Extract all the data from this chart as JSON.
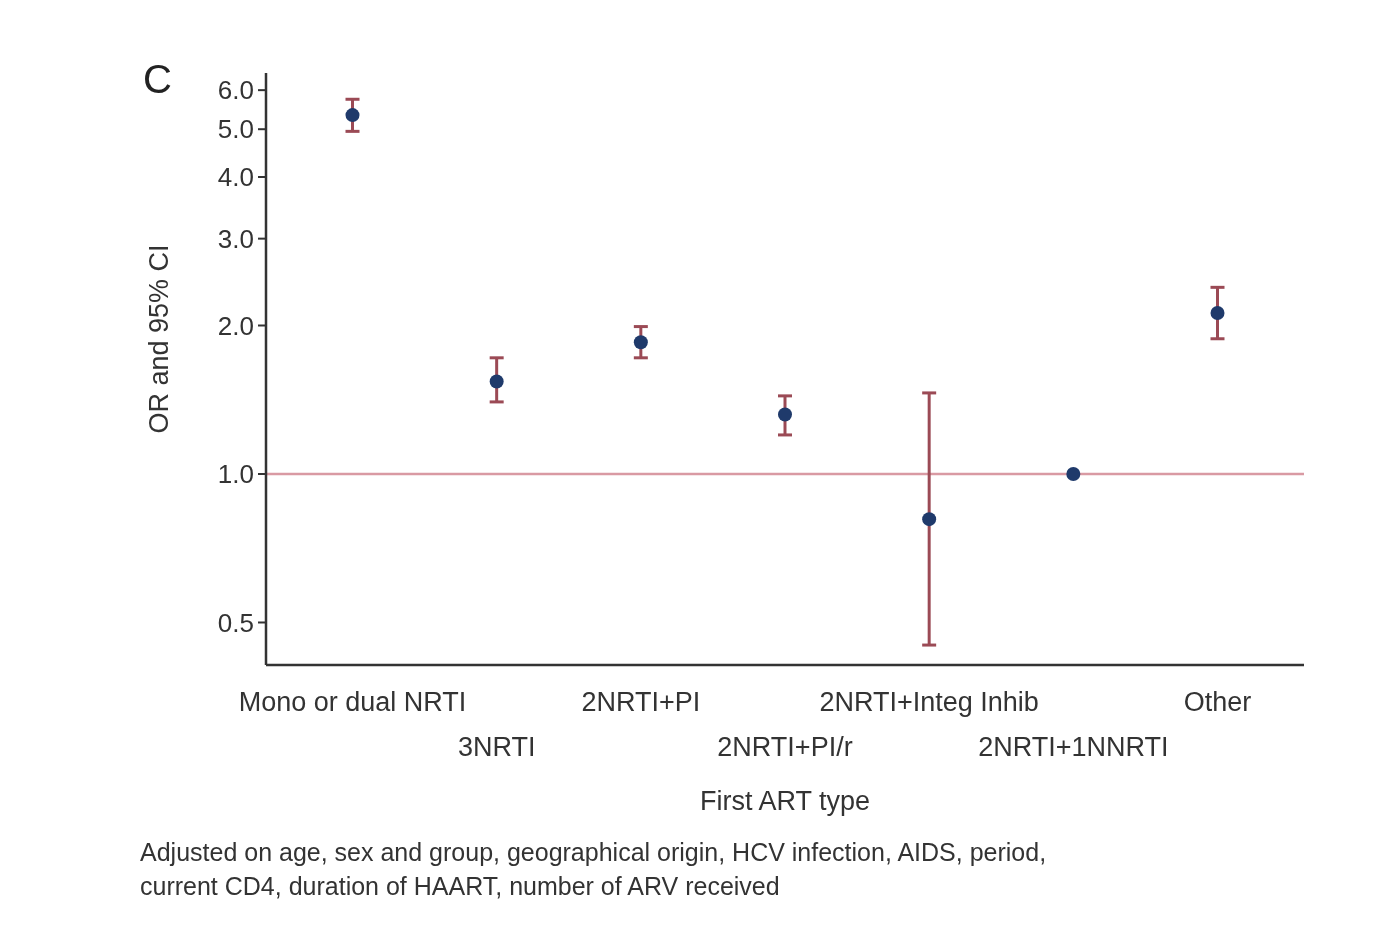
{
  "chart_data": {
    "type": "scatter",
    "title": "C",
    "xlabel": "First ART type",
    "ylabel": "OR and 95% CI",
    "categories": [
      "Mono or dual NRTI",
      "3NRTI",
      "2NRTI+PI",
      "2NRTI+PI/r",
      "2NRTI+Integ Inhib",
      "2NRTI+1NNRTI",
      "Other"
    ],
    "series": [
      {
        "color": "#1f3a6b",
        "values": [
          5.34,
          1.54,
          1.85,
          1.32,
          0.81,
          1.0,
          2.12
        ],
        "errors": [
          [
            4.95,
            5.75
          ],
          [
            1.4,
            1.72
          ],
          [
            1.72,
            1.99
          ],
          [
            1.2,
            1.44
          ],
          [
            0.45,
            1.46
          ],
          null,
          [
            1.88,
            2.39
          ]
        ]
      }
    ],
    "log": true,
    "ylim": [
      0.41,
      6.5
    ],
    "yticks": [
      {
        "value": 0.5,
        "label": "0.5"
      },
      {
        "value": 1,
        "label": "1.0"
      },
      {
        "value": 2,
        "label": "2.0"
      },
      {
        "value": 3,
        "label": "3.0"
      },
      {
        "value": 4,
        "label": "4.0"
      },
      {
        "value": 5,
        "label": "5.0"
      },
      {
        "value": 6,
        "label": "6.0"
      }
    ],
    "ref_lines": [
      {
        "axis": "y",
        "value": 1,
        "color": "#d99aa3"
      }
    ],
    "marker": "circle",
    "grid": false,
    "annotations": [
      "Adjusted on age, sex and group, geographical origin, HCV infection, AIDS, period,",
      "current CD4, duration of HAART, number of ARV received"
    ]
  }
}
